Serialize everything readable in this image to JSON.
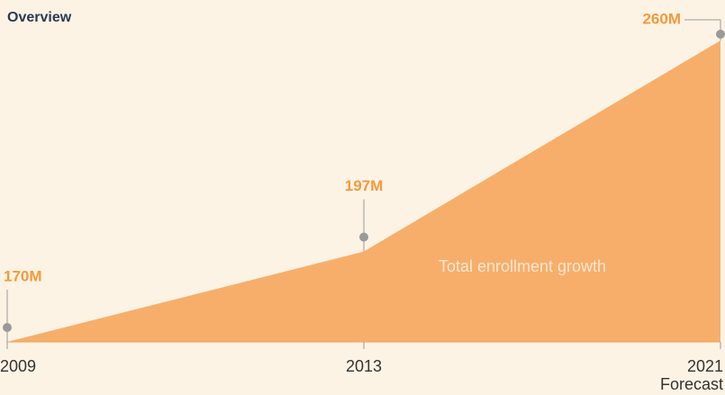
{
  "chart_data": {
    "type": "area",
    "title": "Overview",
    "categories": [
      "2009",
      "2013",
      "2021"
    ],
    "values": [
      170,
      197,
      260
    ],
    "value_labels": [
      "170M",
      "197M",
      "260M"
    ],
    "color": "#f7ae6b",
    "ylim": [
      170,
      260
    ],
    "series_label": "Total enrollment growth",
    "annotation": "Forecast"
  }
}
